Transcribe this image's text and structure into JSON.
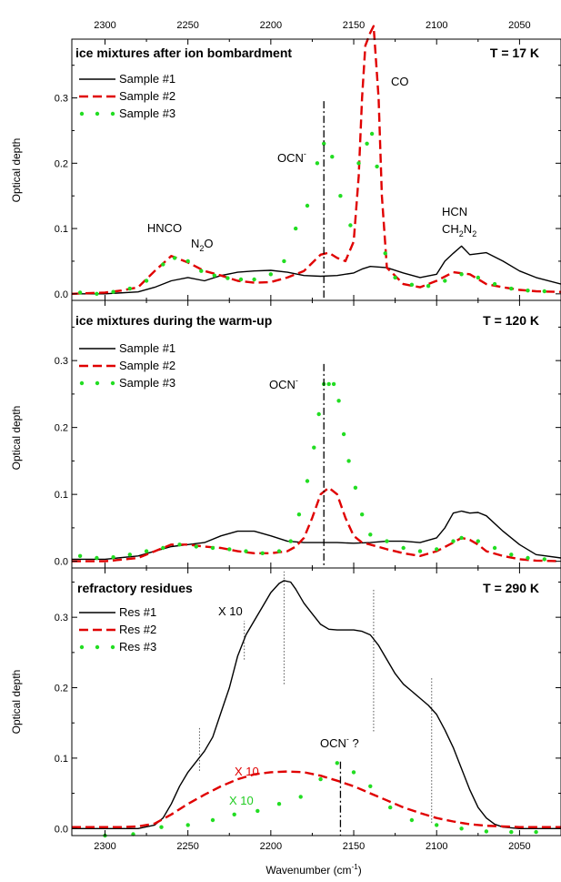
{
  "figure": {
    "top_axis_ticks": [
      "2300",
      "2250",
      "2200",
      "2150",
      "2100",
      "2050"
    ],
    "xlabel": "Wavenumber (cm",
    "xlabel_sup": "-1",
    "xlabel_end": ")"
  },
  "chart_data": [
    {
      "type": "line",
      "title": "ice mixtures after ion bombardment",
      "temperature": "T = 17 K",
      "ylabel": "Optical depth",
      "xlim": [
        2320,
        2025
      ],
      "ylim": [
        -0.01,
        0.39
      ],
      "yticks": [
        0.0,
        0.1,
        0.2,
        0.3
      ],
      "ytick_labels": [
        "0.0",
        "0.1",
        "0.2",
        "0.3"
      ],
      "legend_position": "top-left",
      "series": [
        {
          "name": "Sample #1",
          "style": "solid",
          "color": "#000000",
          "x": [
            2320,
            2300,
            2280,
            2270,
            2260,
            2250,
            2240,
            2230,
            2220,
            2210,
            2200,
            2190,
            2180,
            2170,
            2160,
            2150,
            2145,
            2140,
            2130,
            2120,
            2110,
            2100,
            2095,
            2090,
            2085,
            2080,
            2070,
            2060,
            2050,
            2040,
            2025
          ],
          "y": [
            0.0,
            0.0,
            0.003,
            0.01,
            0.02,
            0.025,
            0.02,
            0.028,
            0.033,
            0.035,
            0.036,
            0.033,
            0.028,
            0.027,
            0.028,
            0.032,
            0.038,
            0.042,
            0.04,
            0.032,
            0.025,
            0.03,
            0.05,
            0.062,
            0.073,
            0.06,
            0.063,
            0.05,
            0.035,
            0.025,
            0.015
          ]
        },
        {
          "name": "Sample #2",
          "style": "dashed",
          "color": "#e00000",
          "x": [
            2320,
            2300,
            2290,
            2280,
            2270,
            2260,
            2250,
            2240,
            2230,
            2220,
            2210,
            2200,
            2190,
            2180,
            2170,
            2165,
            2160,
            2155,
            2150,
            2147,
            2145,
            2143,
            2140,
            2138,
            2135,
            2133,
            2130,
            2120,
            2110,
            2100,
            2090,
            2080,
            2070,
            2060,
            2050,
            2040,
            2025
          ],
          "y": [
            0.0,
            0.002,
            0.005,
            0.01,
            0.035,
            0.058,
            0.048,
            0.035,
            0.028,
            0.02,
            0.017,
            0.018,
            0.025,
            0.035,
            0.06,
            0.063,
            0.055,
            0.05,
            0.08,
            0.18,
            0.3,
            0.38,
            0.4,
            0.41,
            0.3,
            0.15,
            0.04,
            0.015,
            0.01,
            0.02,
            0.033,
            0.03,
            0.015,
            0.01,
            0.006,
            0.004,
            0.003
          ]
        },
        {
          "name": "Sample #3",
          "style": "dotted",
          "color": "#22dd22",
          "x": [
            2315,
            2305,
            2295,
            2285,
            2275,
            2265,
            2258,
            2250,
            2242,
            2234,
            2226,
            2218,
            2210,
            2200,
            2192,
            2185,
            2178,
            2172,
            2168,
            2163,
            2158,
            2152,
            2147,
            2142,
            2139,
            2136,
            2131,
            2125,
            2115,
            2105,
            2095,
            2085,
            2075,
            2065,
            2055,
            2045,
            2035
          ],
          "y": [
            0.002,
            0.0,
            0.003,
            0.008,
            0.02,
            0.045,
            0.055,
            0.05,
            0.035,
            0.028,
            0.024,
            0.022,
            0.022,
            0.03,
            0.05,
            0.1,
            0.135,
            0.2,
            0.23,
            0.21,
            0.15,
            0.105,
            0.2,
            0.23,
            0.245,
            0.195,
            0.062,
            0.025,
            0.014,
            0.012,
            0.02,
            0.03,
            0.025,
            0.015,
            0.008,
            0.005,
            0.004
          ]
        }
      ],
      "annotations": {
        "hnco": "HNCO",
        "n2o_main": "N",
        "n2o_sub": "2",
        "n2o_end": "O",
        "ocn_main": "OCN",
        "ocn_sup": "-",
        "co": "CO",
        "hcn": "HCN",
        "ch2n2_1": "CH",
        "ch2n2_sub1": "2",
        "ch2n2_2": "N",
        "ch2n2_sub2": "2"
      },
      "vline_x": 2168
    },
    {
      "type": "line",
      "title": "ice mixtures during the warm-up",
      "temperature": "T = 120 K",
      "ylabel": "Optical depth",
      "xlim": [
        2320,
        2025
      ],
      "ylim": [
        -0.01,
        0.39
      ],
      "yticks": [
        0.0,
        0.1,
        0.2,
        0.3
      ],
      "ytick_labels": [
        "0.0",
        "0.1",
        "0.2",
        "0.3"
      ],
      "legend_position": "top-left",
      "series": [
        {
          "name": "Sample #1",
          "style": "solid",
          "color": "#000000",
          "x": [
            2320,
            2300,
            2280,
            2270,
            2260,
            2250,
            2240,
            2230,
            2220,
            2210,
            2200,
            2190,
            2180,
            2170,
            2160,
            2150,
            2140,
            2130,
            2120,
            2110,
            2100,
            2095,
            2090,
            2085,
            2080,
            2075,
            2070,
            2060,
            2050,
            2040,
            2025
          ],
          "y": [
            0.003,
            0.003,
            0.008,
            0.015,
            0.022,
            0.025,
            0.028,
            0.038,
            0.045,
            0.045,
            0.038,
            0.03,
            0.028,
            0.028,
            0.028,
            0.027,
            0.028,
            0.03,
            0.03,
            0.028,
            0.035,
            0.05,
            0.072,
            0.075,
            0.072,
            0.073,
            0.068,
            0.045,
            0.025,
            0.01,
            0.005
          ]
        },
        {
          "name": "Sample #2",
          "style": "dashed",
          "color": "#e00000",
          "x": [
            2320,
            2300,
            2280,
            2270,
            2260,
            2250,
            2240,
            2230,
            2220,
            2210,
            2200,
            2190,
            2185,
            2180,
            2175,
            2170,
            2165,
            2160,
            2155,
            2150,
            2145,
            2140,
            2130,
            2120,
            2110,
            2100,
            2090,
            2085,
            2080,
            2075,
            2070,
            2060,
            2050,
            2040,
            2025
          ],
          "y": [
            0.0,
            0.0,
            0.005,
            0.015,
            0.025,
            0.025,
            0.022,
            0.02,
            0.015,
            0.012,
            0.012,
            0.015,
            0.022,
            0.035,
            0.065,
            0.1,
            0.11,
            0.1,
            0.065,
            0.038,
            0.028,
            0.025,
            0.018,
            0.012,
            0.008,
            0.015,
            0.028,
            0.035,
            0.032,
            0.025,
            0.015,
            0.008,
            0.003,
            0.001,
            0.0
          ]
        },
        {
          "name": "Sample #3",
          "style": "dotted",
          "color": "#22dd22",
          "x": [
            2315,
            2305,
            2295,
            2285,
            2275,
            2265,
            2255,
            2245,
            2235,
            2225,
            2215,
            2205,
            2195,
            2188,
            2183,
            2178,
            2174,
            2171,
            2168,
            2165,
            2162,
            2159,
            2156,
            2153,
            2149,
            2145,
            2140,
            2130,
            2120,
            2110,
            2100,
            2090,
            2085,
            2075,
            2065,
            2055,
            2045,
            2035
          ],
          "y": [
            0.008,
            0.005,
            0.006,
            0.01,
            0.015,
            0.02,
            0.025,
            0.022,
            0.02,
            0.018,
            0.015,
            0.012,
            0.015,
            0.03,
            0.07,
            0.12,
            0.17,
            0.22,
            0.265,
            0.265,
            0.265,
            0.24,
            0.19,
            0.15,
            0.11,
            0.07,
            0.04,
            0.03,
            0.02,
            0.015,
            0.018,
            0.03,
            0.035,
            0.03,
            0.02,
            0.01,
            0.005,
            0.003
          ]
        }
      ],
      "annotations": {
        "ocn_main": "OCN",
        "ocn_sup": "-"
      },
      "vline_x": 2168
    },
    {
      "type": "line",
      "title": "refractory residues",
      "temperature": "T = 290 K",
      "ylabel": "Optical depth",
      "xlim": [
        2320,
        2025
      ],
      "ylim": [
        -0.01,
        0.37
      ],
      "yticks": [
        0.0,
        0.1,
        0.2,
        0.3
      ],
      "ytick_labels": [
        "0.0",
        "0.1",
        "0.2",
        "0.3"
      ],
      "legend_position": "top-left",
      "series": [
        {
          "name": "Res #1",
          "style": "solid",
          "color": "#000000",
          "x": [
            2320,
            2300,
            2290,
            2280,
            2270,
            2265,
            2260,
            2255,
            2250,
            2245,
            2240,
            2235,
            2230,
            2225,
            2220,
            2215,
            2210,
            2205,
            2200,
            2195,
            2192,
            2188,
            2185,
            2180,
            2175,
            2170,
            2165,
            2160,
            2155,
            2150,
            2145,
            2140,
            2135,
            2130,
            2125,
            2120,
            2115,
            2110,
            2105,
            2100,
            2095,
            2090,
            2085,
            2080,
            2075,
            2070,
            2065,
            2060,
            2050,
            2040,
            2025
          ],
          "y": [
            0.0,
            0.0,
            0.0,
            0.0,
            0.005,
            0.015,
            0.035,
            0.06,
            0.08,
            0.095,
            0.11,
            0.13,
            0.165,
            0.2,
            0.245,
            0.275,
            0.295,
            0.315,
            0.335,
            0.348,
            0.352,
            0.35,
            0.34,
            0.32,
            0.305,
            0.29,
            0.283,
            0.282,
            0.282,
            0.282,
            0.28,
            0.275,
            0.26,
            0.24,
            0.22,
            0.205,
            0.195,
            0.185,
            0.175,
            0.162,
            0.14,
            0.115,
            0.085,
            0.055,
            0.03,
            0.015,
            0.006,
            0.002,
            0.0,
            0.0,
            0.0
          ]
        },
        {
          "name": "Res #2",
          "style": "dashed",
          "color": "#e00000",
          "x": [
            2320,
            2300,
            2290,
            2280,
            2270,
            2260,
            2250,
            2240,
            2230,
            2220,
            2210,
            2200,
            2190,
            2180,
            2170,
            2160,
            2150,
            2140,
            2130,
            2120,
            2110,
            2100,
            2090,
            2080,
            2070,
            2060,
            2050,
            2040,
            2025
          ],
          "y": [
            0.002,
            0.002,
            0.002,
            0.003,
            0.007,
            0.02,
            0.035,
            0.048,
            0.06,
            0.07,
            0.077,
            0.08,
            0.081,
            0.08,
            0.075,
            0.068,
            0.06,
            0.05,
            0.04,
            0.03,
            0.022,
            0.015,
            0.01,
            0.006,
            0.004,
            0.003,
            0.002,
            0.002,
            0.002
          ]
        },
        {
          "name": "Res #3",
          "style": "dotted",
          "color": "#22dd22",
          "x": [
            2300,
            2283,
            2266,
            2250,
            2235,
            2222,
            2208,
            2195,
            2182,
            2170,
            2160,
            2150,
            2140,
            2128,
            2115,
            2100,
            2085,
            2070,
            2055,
            2040
          ],
          "y": [
            -0.01,
            -0.008,
            0.002,
            0.005,
            0.012,
            0.02,
            0.025,
            0.035,
            0.045,
            0.07,
            0.093,
            0.08,
            0.06,
            0.03,
            0.012,
            0.005,
            0.0,
            -0.004,
            -0.005,
            -0.005
          ]
        }
      ],
      "annotations": {
        "x10_black": "X 10",
        "x10_red": "X 10",
        "x10_green": "X 10",
        "ocn_main": "OCN",
        "ocn_sup": "-",
        "ocn_q": " ?"
      },
      "vline_x": 2158,
      "dotted_vlines": [
        {
          "x": 2243,
          "y1": 0.082,
          "y2": 0.145
        },
        {
          "x": 2216,
          "y1": 0.24,
          "y2": 0.295
        },
        {
          "x": 2192,
          "y1": 0.205,
          "y2": 0.365
        },
        {
          "x": 2138,
          "y1": 0.138,
          "y2": 0.34
        },
        {
          "x": 2103,
          "y1": 0.008,
          "y2": 0.215
        }
      ]
    }
  ]
}
